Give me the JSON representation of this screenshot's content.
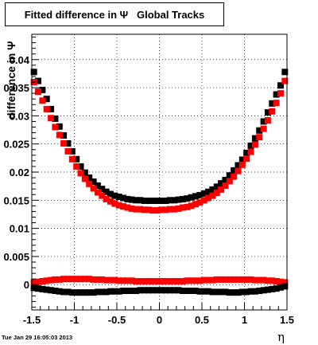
{
  "chart_data": {
    "type": "scatter",
    "title": "Fitted difference in Ψ   Global Tracks",
    "xlabel": "η",
    "ylabel": "difference in Ψ",
    "xlim": [
      -1.5,
      1.5
    ],
    "ylim": [
      -0.0045,
      0.0445
    ],
    "x_ticks": [
      "-1.5",
      "-1",
      "-0.5",
      "0",
      "0.5",
      "1",
      "1.5"
    ],
    "y_ticks": [
      "0",
      "0.005",
      "0.01",
      "0.015",
      "0.02",
      "0.025",
      "0.03",
      "0.035",
      "0.04"
    ],
    "grid": true,
    "timestamp": "Tue Jan 29 16:05:03 2013",
    "marker": "square",
    "series": [
      {
        "color": "#000000",
        "x": [
          -1.475,
          -1.425,
          -1.375,
          -1.325,
          -1.275,
          -1.225,
          -1.175,
          -1.125,
          -1.075,
          -1.025,
          -0.975,
          -0.925,
          -0.875,
          -0.825,
          -0.775,
          -0.725,
          -0.675,
          -0.625,
          -0.575,
          -0.525,
          -0.475,
          -0.425,
          -0.375,
          -0.325,
          -0.275,
          -0.225,
          -0.175,
          -0.125,
          -0.075,
          -0.025,
          0.025,
          0.075,
          0.125,
          0.175,
          0.225,
          0.275,
          0.325,
          0.375,
          0.425,
          0.475,
          0.525,
          0.575,
          0.625,
          0.675,
          0.725,
          0.775,
          0.825,
          0.875,
          0.925,
          0.975,
          1.025,
          1.075,
          1.125,
          1.175,
          1.225,
          1.275,
          1.325,
          1.375,
          1.425,
          1.475
        ],
        "y": [
          0.0378,
          0.0362,
          0.0346,
          0.033,
          0.0312,
          0.0295,
          0.0281,
          0.0265,
          0.0251,
          0.0237,
          0.0223,
          0.021,
          0.0199,
          0.019,
          0.0183,
          0.0176,
          0.017,
          0.0165,
          0.0161,
          0.0158,
          0.0156,
          0.0154,
          0.0152,
          0.0151,
          0.015,
          0.015,
          0.0149,
          0.0149,
          0.0149,
          0.0149,
          0.0149,
          0.0149,
          0.015,
          0.015,
          0.0151,
          0.0152,
          0.0153,
          0.0155,
          0.0157,
          0.0159,
          0.0162,
          0.0165,
          0.0169,
          0.0174,
          0.018,
          0.0186,
          0.0194,
          0.0203,
          0.0212,
          0.0222,
          0.0234,
          0.0247,
          0.026,
          0.0274,
          0.029,
          0.0306,
          0.0322,
          0.0338,
          0.0354,
          0.0378
        ]
      },
      {
        "color": "#ff0000",
        "x": [
          -1.475,
          -1.425,
          -1.375,
          -1.325,
          -1.275,
          -1.225,
          -1.175,
          -1.125,
          -1.075,
          -1.025,
          -0.975,
          -0.925,
          -0.875,
          -0.825,
          -0.775,
          -0.725,
          -0.675,
          -0.625,
          -0.575,
          -0.525,
          -0.475,
          -0.425,
          -0.375,
          -0.325,
          -0.275,
          -0.225,
          -0.175,
          -0.125,
          -0.075,
          -0.025,
          0.025,
          0.075,
          0.125,
          0.175,
          0.225,
          0.275,
          0.325,
          0.375,
          0.425,
          0.475,
          0.525,
          0.575,
          0.625,
          0.675,
          0.725,
          0.775,
          0.825,
          0.875,
          0.925,
          0.975,
          1.025,
          1.075,
          1.125,
          1.175,
          1.225,
          1.275,
          1.325,
          1.375,
          1.425,
          1.475
        ],
        "y": [
          0.036,
          0.0343,
          0.0327,
          0.0312,
          0.0296,
          0.028,
          0.0266,
          0.0251,
          0.0237,
          0.0223,
          0.021,
          0.0198,
          0.0188,
          0.0179,
          0.0171,
          0.0164,
          0.0158,
          0.0152,
          0.0148,
          0.0144,
          0.0141,
          0.0139,
          0.0137,
          0.0135,
          0.0134,
          0.0134,
          0.0133,
          0.0133,
          0.0132,
          0.0132,
          0.0133,
          0.0133,
          0.0134,
          0.0134,
          0.0135,
          0.0137,
          0.0138,
          0.014,
          0.0143,
          0.0146,
          0.015,
          0.0154,
          0.0158,
          0.0163,
          0.0169,
          0.0176,
          0.0184,
          0.0192,
          0.0202,
          0.0213,
          0.0224,
          0.0236,
          0.0249,
          0.0262,
          0.0277,
          0.0292,
          0.0308,
          0.0323,
          0.034,
          0.0362
        ]
      },
      {
        "color": "#ff0000",
        "x": [
          -1.475,
          -1.425,
          -1.375,
          -1.325,
          -1.275,
          -1.225,
          -1.175,
          -1.125,
          -1.075,
          -1.025,
          -0.975,
          -0.925,
          -0.875,
          -0.825,
          -0.775,
          -0.725,
          -0.675,
          -0.625,
          -0.575,
          -0.525,
          -0.475,
          -0.425,
          -0.375,
          -0.325,
          -0.275,
          -0.225,
          -0.175,
          -0.125,
          -0.075,
          -0.025,
          0.025,
          0.075,
          0.125,
          0.175,
          0.225,
          0.275,
          0.325,
          0.375,
          0.425,
          0.475,
          0.525,
          0.575,
          0.625,
          0.675,
          0.725,
          0.775,
          0.825,
          0.875,
          0.925,
          0.975,
          1.025,
          1.075,
          1.125,
          1.175,
          1.225,
          1.275,
          1.325,
          1.375,
          1.425,
          1.475
        ],
        "y": [
          0.0004,
          0.0005,
          0.0006,
          0.0007,
          0.0008,
          0.0009,
          0.0009,
          0.001,
          0.001,
          0.001,
          0.001,
          0.001,
          0.001,
          0.001,
          0.0009,
          0.0009,
          0.0009,
          0.0008,
          0.0008,
          0.0008,
          0.0007,
          0.0007,
          0.0007,
          0.0007,
          0.0006,
          0.0006,
          0.0006,
          0.0006,
          0.0006,
          0.0006,
          0.0006,
          0.0006,
          0.0006,
          0.0006,
          0.0006,
          0.0006,
          0.0007,
          0.0007,
          0.0007,
          0.0007,
          0.0008,
          0.0008,
          0.0008,
          0.0009,
          0.0009,
          0.0009,
          0.0009,
          0.0009,
          0.0009,
          0.0009,
          0.0009,
          0.0009,
          0.0008,
          0.0008,
          0.0008,
          0.0007,
          0.0007,
          0.0006,
          0.0005,
          0.0004
        ]
      },
      {
        "color": "#000000",
        "x": [
          -1.475,
          -1.425,
          -1.375,
          -1.325,
          -1.275,
          -1.225,
          -1.175,
          -1.125,
          -1.075,
          -1.025,
          -0.975,
          -0.925,
          -0.875,
          -0.825,
          -0.775,
          -0.725,
          -0.675,
          -0.625,
          -0.575,
          -0.525,
          -0.475,
          -0.425,
          -0.375,
          -0.325,
          -0.275,
          -0.225,
          -0.175,
          -0.125,
          -0.075,
          -0.025,
          0.025,
          0.075,
          0.125,
          0.175,
          0.225,
          0.275,
          0.325,
          0.375,
          0.425,
          0.475,
          0.525,
          0.575,
          0.625,
          0.675,
          0.725,
          0.775,
          0.825,
          0.875,
          0.925,
          0.975,
          1.025,
          1.075,
          1.125,
          1.175,
          1.225,
          1.275,
          1.325,
          1.375,
          1.425,
          1.475
        ],
        "y": [
          -0.0006,
          -0.0007,
          -0.0008,
          -0.0009,
          -0.001,
          -0.0011,
          -0.0012,
          -0.0013,
          -0.0013,
          -0.0014,
          -0.0014,
          -0.0014,
          -0.0014,
          -0.0014,
          -0.0014,
          -0.0013,
          -0.0013,
          -0.0013,
          -0.0012,
          -0.0012,
          -0.0012,
          -0.0011,
          -0.0011,
          -0.0011,
          -0.0011,
          -0.001,
          -0.001,
          -0.001,
          -0.001,
          -0.001,
          -0.001,
          -0.001,
          -0.001,
          -0.001,
          -0.001,
          -0.0011,
          -0.0011,
          -0.0011,
          -0.0011,
          -0.0012,
          -0.0012,
          -0.0012,
          -0.0013,
          -0.0013,
          -0.0013,
          -0.0013,
          -0.0014,
          -0.0014,
          -0.0014,
          -0.0013,
          -0.0013,
          -0.0012,
          -0.0012,
          -0.0011,
          -0.001,
          -0.0009,
          -0.0008,
          -0.0007,
          -0.0005,
          -0.0003
        ]
      }
    ]
  }
}
